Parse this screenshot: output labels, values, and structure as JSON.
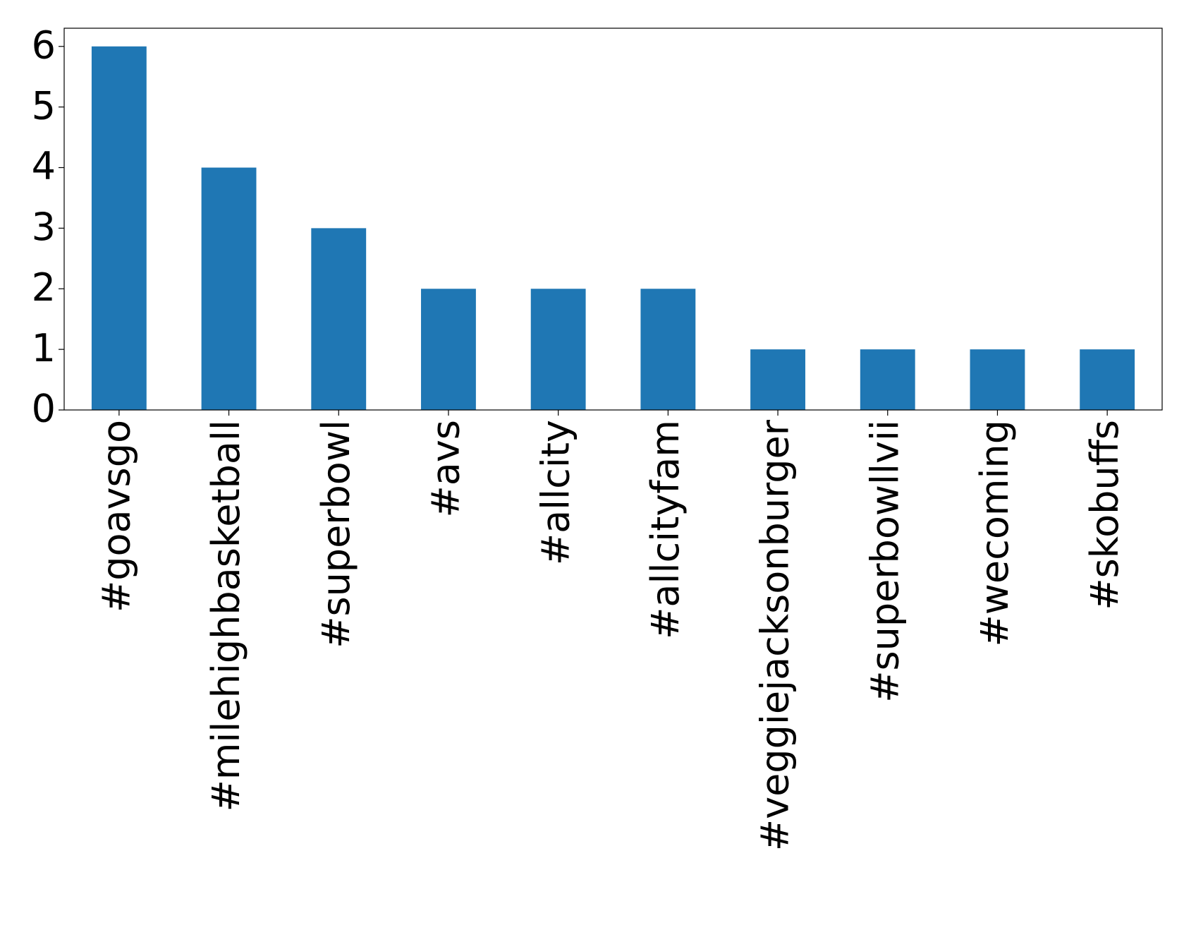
{
  "chart_data": {
    "type": "bar",
    "categories": [
      "#goavsgo",
      "#milehighbasketball",
      "#superbowl",
      "#avs",
      "#allcity",
      "#allcityfam",
      "#veggiejacksonburger",
      "#superbowllvii",
      "#wecoming",
      "#skobuffs"
    ],
    "values": [
      6,
      4,
      3,
      2,
      2,
      2,
      1,
      1,
      1,
      1
    ],
    "color": "#1f77b4",
    "ylim": [
      0,
      6.3
    ],
    "yticks": [
      0,
      1,
      2,
      3,
      4,
      5,
      6
    ],
    "grid": false
  }
}
